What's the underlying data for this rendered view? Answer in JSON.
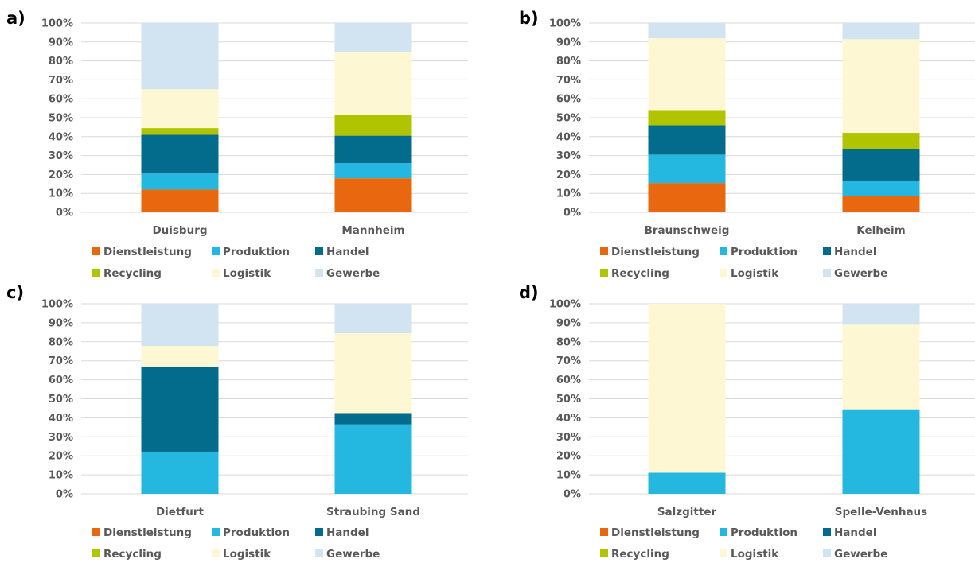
{
  "colors": {
    "Dienstleistung": "#e8670f",
    "Produktion": "#24b8e0",
    "Handel": "#036b8c",
    "Recycling": "#b0c400",
    "Logistik": "#fdf8d3",
    "Gewerbe": "#d2e3f1"
  },
  "legend": [
    "Dienstleistung",
    "Produktion",
    "Handel",
    "Recycling",
    "Logistik",
    "Gewerbe"
  ],
  "chart_data": [
    {
      "panel": "a)",
      "type": "bar",
      "stacked": true,
      "categories": [
        "Duisburg",
        "Mannheim"
      ],
      "ylim": [
        0,
        100
      ],
      "yticks": [
        "0%",
        "10%",
        "20%",
        "30%",
        "40%",
        "50%",
        "60%",
        "70%",
        "80%",
        "90%",
        "100%"
      ],
      "series": [
        {
          "name": "Dienstleistung",
          "values": [
            12,
            18
          ]
        },
        {
          "name": "Produktion",
          "values": [
            8.5,
            8
          ]
        },
        {
          "name": "Handel",
          "values": [
            20.5,
            14.5
          ]
        },
        {
          "name": "Recycling",
          "values": [
            3.5,
            11
          ]
        },
        {
          "name": "Logistik",
          "values": [
            20.5,
            33
          ]
        },
        {
          "name": "Gewerbe",
          "values": [
            35,
            15.5
          ]
        }
      ]
    },
    {
      "panel": "b)",
      "type": "bar",
      "stacked": true,
      "categories": [
        "Braunschweig",
        "Kelheim"
      ],
      "ylim": [
        0,
        100
      ],
      "yticks": [
        "0%",
        "10%",
        "20%",
        "30%",
        "40%",
        "50%",
        "60%",
        "70%",
        "80%",
        "90%",
        "100%"
      ],
      "series": [
        {
          "name": "Dienstleistung",
          "values": [
            15.5,
            8.5
          ]
        },
        {
          "name": "Produktion",
          "values": [
            15,
            8
          ]
        },
        {
          "name": "Handel",
          "values": [
            15.5,
            17
          ]
        },
        {
          "name": "Recycling",
          "values": [
            8,
            8.5
          ]
        },
        {
          "name": "Logistik",
          "values": [
            38,
            49.5
          ]
        },
        {
          "name": "Gewerbe",
          "values": [
            8,
            8.5
          ]
        }
      ]
    },
    {
      "panel": "c)",
      "type": "bar",
      "stacked": true,
      "categories": [
        "Dietfurt",
        "Straubing Sand"
      ],
      "ylim": [
        0,
        100
      ],
      "yticks": [
        "0%",
        "10%",
        "20%",
        "30%",
        "40%",
        "50%",
        "60%",
        "70%",
        "80%",
        "90%",
        "100%"
      ],
      "series": [
        {
          "name": "Dienstleistung",
          "values": [
            0,
            0
          ]
        },
        {
          "name": "Produktion",
          "values": [
            22.2,
            36.5
          ]
        },
        {
          "name": "Handel",
          "values": [
            44.5,
            6
          ]
        },
        {
          "name": "Recycling",
          "values": [
            0,
            0
          ]
        },
        {
          "name": "Logistik",
          "values": [
            11.1,
            42
          ]
        },
        {
          "name": "Gewerbe",
          "values": [
            22.2,
            15.5
          ]
        }
      ]
    },
    {
      "panel": "d)",
      "type": "bar",
      "stacked": true,
      "categories": [
        "Salzgitter",
        "Spelle-Venhaus"
      ],
      "ylim": [
        0,
        100
      ],
      "yticks": [
        "0%",
        "10%",
        "20%",
        "30%",
        "40%",
        "50%",
        "60%",
        "70%",
        "80%",
        "90%",
        "100%"
      ],
      "series": [
        {
          "name": "Dienstleistung",
          "values": [
            0,
            0
          ]
        },
        {
          "name": "Produktion",
          "values": [
            11.1,
            44.5
          ]
        },
        {
          "name": "Handel",
          "values": [
            0,
            0
          ]
        },
        {
          "name": "Recycling",
          "values": [
            0,
            0
          ]
        },
        {
          "name": "Logistik",
          "values": [
            88.9,
            44.5
          ]
        },
        {
          "name": "Gewerbe",
          "values": [
            0,
            11
          ]
        }
      ]
    }
  ]
}
